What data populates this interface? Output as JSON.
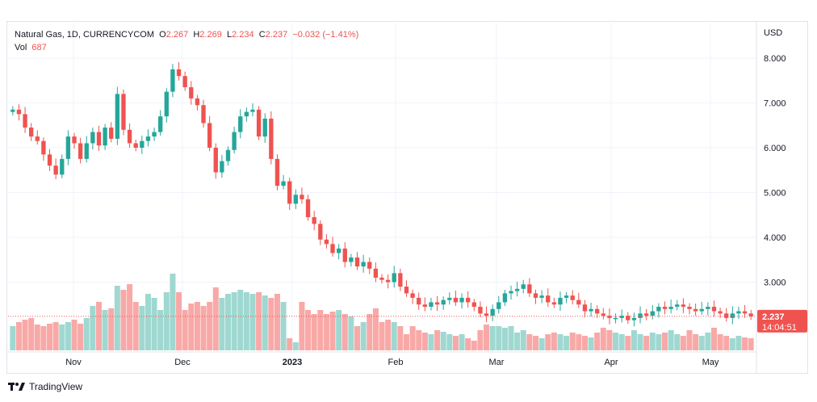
{
  "header": {
    "symbol": "Natural Gas, 1D, CURRENCYCOM",
    "o_label": "O",
    "o_value": "2.267",
    "h_label": "H",
    "h_value": "2.269",
    "l_label": "L",
    "l_value": "2.234",
    "c_label": "C",
    "c_value": "2.237",
    "change": "−0.032 (−1.41%)",
    "vol_label": "Vol",
    "vol_value": "687"
  },
  "price_axis": {
    "currency": "USD",
    "ticks": [
      "8.000",
      "7.000",
      "6.000",
      "5.000",
      "4.000",
      "3.000"
    ]
  },
  "time_axis": {
    "labels": [
      "Nov",
      "Dec",
      "2023",
      "Feb",
      "Mar",
      "Apr",
      "May"
    ]
  },
  "last_price": {
    "value": "2.237",
    "countdown": "14:04:51"
  },
  "brand": {
    "name": "TradingView"
  },
  "colors": {
    "up": "#26a69a",
    "down": "#ef5350",
    "up_vol": "#9fd8d1",
    "down_vol": "#f8a9a7",
    "grid": "#f0f3fa"
  },
  "chart_data": {
    "type": "candlestick",
    "title": "Natural Gas, 1D, CURRENCYCOM",
    "ylabel": "USD",
    "ylim": [
      2.0,
      8.3
    ],
    "x_labels": [
      "Nov",
      "Dec",
      "2023",
      "Feb",
      "Mar",
      "Apr",
      "May"
    ],
    "grid": true,
    "ohlc_close_series": [
      6.85,
      6.75,
      6.45,
      6.25,
      6.15,
      5.85,
      5.6,
      5.4,
      5.75,
      6.25,
      6.1,
      5.75,
      6.1,
      6.35,
      6.05,
      6.45,
      6.2,
      7.2,
      6.4,
      6.1,
      6.0,
      6.15,
      6.25,
      6.35,
      6.7,
      7.25,
      7.75,
      7.6,
      7.35,
      7.1,
      6.95,
      6.55,
      6.0,
      5.45,
      5.7,
      5.95,
      6.35,
      6.7,
      6.8,
      6.85,
      6.25,
      6.65,
      5.75,
      5.15,
      5.25,
      4.75,
      4.95,
      4.85,
      4.45,
      4.3,
      3.95,
      3.85,
      3.65,
      3.75,
      3.45,
      3.55,
      3.35,
      3.45,
      3.3,
      3.1,
      3.05,
      3.0,
      3.2,
      2.9,
      2.75,
      2.65,
      2.5,
      2.45,
      2.55,
      2.5,
      2.6,
      2.65,
      2.55,
      2.65,
      2.55,
      2.45,
      2.3,
      2.25,
      2.4,
      2.55,
      2.75,
      2.8,
      2.85,
      2.95,
      2.75,
      2.65,
      2.7,
      2.55,
      2.5,
      2.65,
      2.7,
      2.6,
      2.5,
      2.35,
      2.4,
      2.3,
      2.25,
      2.2,
      2.2,
      2.25,
      2.15,
      2.2,
      2.3,
      2.25,
      2.35,
      2.45,
      2.4,
      2.45,
      2.5,
      2.45,
      2.4,
      2.35,
      2.4,
      2.45,
      2.35,
      2.3,
      2.2,
      2.3,
      2.35,
      2.3,
      2.237
    ],
    "volume_relative": [
      0.3,
      0.35,
      0.38,
      0.4,
      0.32,
      0.3,
      0.33,
      0.35,
      0.32,
      0.35,
      0.38,
      0.33,
      0.4,
      0.55,
      0.6,
      0.5,
      0.52,
      0.8,
      0.75,
      0.82,
      0.6,
      0.55,
      0.7,
      0.65,
      0.5,
      0.72,
      0.95,
      0.72,
      0.5,
      0.58,
      0.6,
      0.55,
      0.6,
      0.78,
      0.65,
      0.7,
      0.72,
      0.75,
      0.72,
      0.7,
      0.72,
      0.68,
      0.65,
      0.7,
      0.6,
      0.15,
      0.1,
      0.6,
      0.5,
      0.45,
      0.5,
      0.45,
      0.48,
      0.5,
      0.45,
      0.42,
      0.3,
      0.35,
      0.45,
      0.52,
      0.35,
      0.38,
      0.35,
      0.3,
      0.2,
      0.3,
      0.25,
      0.22,
      0.2,
      0.25,
      0.23,
      0.2,
      0.18,
      0.2,
      0.15,
      0.12,
      0.25,
      0.32,
      0.3,
      0.3,
      0.28,
      0.3,
      0.22,
      0.25,
      0.2,
      0.18,
      0.15,
      0.2,
      0.22,
      0.2,
      0.18,
      0.22,
      0.2,
      0.18,
      0.16,
      0.22,
      0.28,
      0.25,
      0.22,
      0.2,
      0.18,
      0.25,
      0.2,
      0.18,
      0.22,
      0.2,
      0.22,
      0.25,
      0.2,
      0.18,
      0.25,
      0.2,
      0.18,
      0.22,
      0.28,
      0.2,
      0.18,
      0.15,
      0.18,
      0.16,
      0.15
    ]
  }
}
